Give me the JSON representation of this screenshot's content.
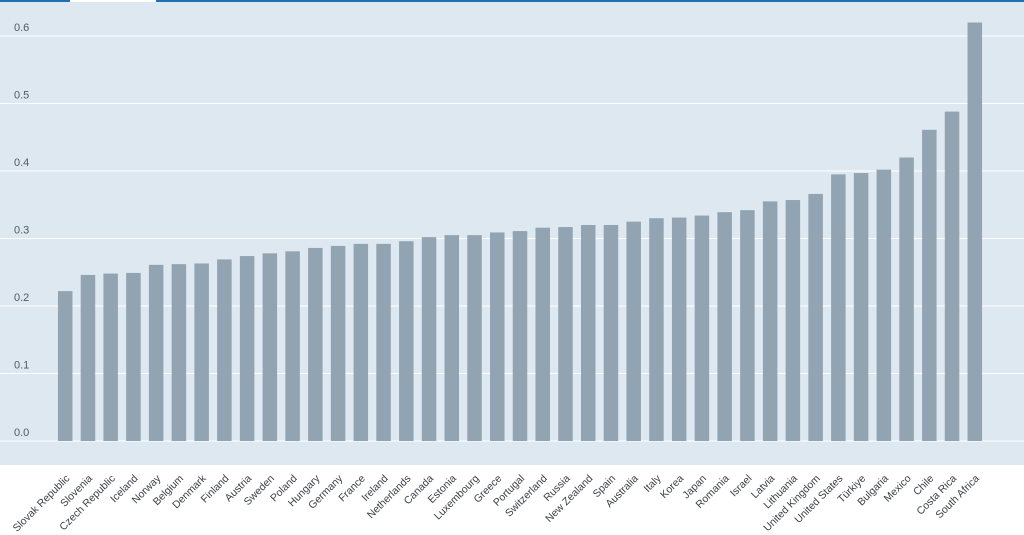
{
  "colors": {
    "plot_background": "#dde8f1",
    "bar": "#92a4b1",
    "gridline": "#ffffff",
    "accent_line": "#1f6fb2",
    "tab_indicator": "#ffffff"
  },
  "chart_data": {
    "type": "bar",
    "categories": [
      "Slovak Republic",
      "Slovenia",
      "Czech Republic",
      "Iceland",
      "Norway",
      "Belgium",
      "Denmark",
      "Finland",
      "Austria",
      "Sweden",
      "Poland",
      "Hungary",
      "Germany",
      "France",
      "Ireland",
      "Netherlands",
      "Canada",
      "Estonia",
      "Luxembourg",
      "Greece",
      "Portugal",
      "Switzerland",
      "Russia",
      "New Zealand",
      "Spain",
      "Australia",
      "Italy",
      "Korea",
      "Japan",
      "Romania",
      "Israel",
      "Latvia",
      "Lithuania",
      "United Kingdom",
      "United States",
      "Türkiye",
      "Bulgaria",
      "Mexico",
      "Chile",
      "Costa Rica",
      "South Africa"
    ],
    "values": [
      0.222,
      0.246,
      0.248,
      0.249,
      0.261,
      0.262,
      0.263,
      0.269,
      0.274,
      0.278,
      0.281,
      0.286,
      0.289,
      0.292,
      0.292,
      0.296,
      0.302,
      0.305,
      0.305,
      0.309,
      0.311,
      0.316,
      0.317,
      0.32,
      0.32,
      0.325,
      0.33,
      0.331,
      0.334,
      0.339,
      0.342,
      0.355,
      0.357,
      0.366,
      0.395,
      0.397,
      0.402,
      0.42,
      0.461,
      0.488,
      0.62
    ],
    "yticks": [
      0.0,
      0.1,
      0.2,
      0.3,
      0.4,
      0.5,
      0.6
    ],
    "ytick_labels": [
      "0.0",
      "0.1",
      "0.2",
      "0.3",
      "0.4",
      "0.5",
      "0.6"
    ],
    "ylim": [
      0,
      0.64
    ],
    "grid": true,
    "title": "",
    "xlabel": "",
    "ylabel": ""
  }
}
